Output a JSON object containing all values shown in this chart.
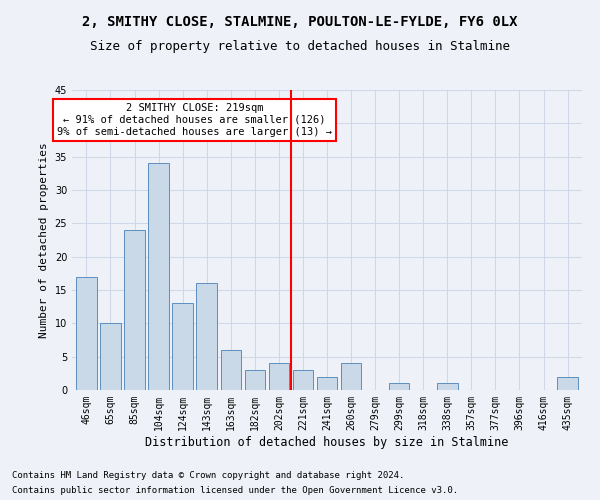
{
  "title1": "2, SMITHY CLOSE, STALMINE, POULTON-LE-FYLDE, FY6 0LX",
  "title2": "Size of property relative to detached houses in Stalmine",
  "xlabel": "Distribution of detached houses by size in Stalmine",
  "ylabel": "Number of detached properties",
  "categories": [
    "46sqm",
    "65sqm",
    "85sqm",
    "104sqm",
    "124sqm",
    "143sqm",
    "163sqm",
    "182sqm",
    "202sqm",
    "221sqm",
    "241sqm",
    "260sqm",
    "279sqm",
    "299sqm",
    "318sqm",
    "338sqm",
    "357sqm",
    "377sqm",
    "396sqm",
    "416sqm",
    "435sqm"
  ],
  "values": [
    17,
    10,
    24,
    34,
    13,
    16,
    6,
    3,
    4,
    3,
    2,
    4,
    0,
    1,
    0,
    1,
    0,
    0,
    0,
    0,
    2
  ],
  "bar_color": "#c9d9e8",
  "bar_edge_color": "#5a8fc0",
  "grid_color": "#d0d8e8",
  "background_color": "#eef2f8",
  "vline_color": "red",
  "annotation_text": "2 SMITHY CLOSE: 219sqm\n← 91% of detached houses are smaller (126)\n9% of semi-detached houses are larger (13) →",
  "annotation_box_color": "white",
  "annotation_box_edge": "red",
  "ylim": [
    0,
    45
  ],
  "yticks": [
    0,
    5,
    10,
    15,
    20,
    25,
    30,
    35,
    40,
    45
  ],
  "footer1": "Contains HM Land Registry data © Crown copyright and database right 2024.",
  "footer2": "Contains public sector information licensed under the Open Government Licence v3.0.",
  "title1_fontsize": 10,
  "title2_fontsize": 9,
  "xlabel_fontsize": 8.5,
  "ylabel_fontsize": 8,
  "tick_fontsize": 7,
  "annotation_fontsize": 7.5,
  "footer_fontsize": 6.5
}
